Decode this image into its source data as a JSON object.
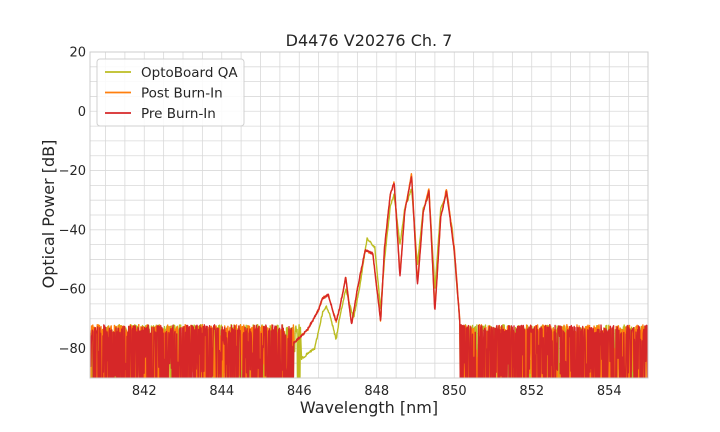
{
  "chart_data": {
    "type": "line",
    "title": "D4476 V20276 Ch. 7",
    "xlabel": "Wavelength [nm]",
    "ylabel": "Optical Power [dB]",
    "xlim": [
      840.6,
      855.0
    ],
    "ylim": [
      -90,
      20
    ],
    "xticks": [
      842,
      844,
      846,
      848,
      850,
      852,
      854
    ],
    "xtick_labels": [
      "842",
      "844",
      "846",
      "848",
      "850",
      "852",
      "854"
    ],
    "yticks": [
      20,
      0,
      -20,
      -40,
      -60,
      -80
    ],
    "ytick_labels": [
      "20",
      "0",
      "−20",
      "−40",
      "−60",
      "−80"
    ],
    "grid": true,
    "legend_position": "upper-left",
    "noise_floor": {
      "min": -90,
      "max": -72,
      "from_x": 840.6,
      "to_x": 855.0
    },
    "series": [
      {
        "name": "OptoBoard QA",
        "color": "#bcbd22",
        "envelope": [
          [
            845.9,
            -85
          ],
          [
            846.4,
            -80
          ],
          [
            846.6,
            -68
          ],
          [
            846.7,
            -66
          ],
          [
            846.8,
            -69
          ],
          [
            846.95,
            -77
          ],
          [
            847.05,
            -69
          ],
          [
            847.2,
            -60
          ],
          [
            847.4,
            -70
          ],
          [
            847.55,
            -60
          ],
          [
            847.75,
            -43
          ],
          [
            847.95,
            -46
          ],
          [
            848.1,
            -67
          ],
          [
            848.2,
            -50
          ],
          [
            848.35,
            -32
          ],
          [
            848.45,
            -28
          ],
          [
            848.6,
            -45
          ],
          [
            848.72,
            -33
          ],
          [
            848.9,
            -26
          ],
          [
            849.05,
            -52
          ],
          [
            849.2,
            -33
          ],
          [
            849.35,
            -28
          ],
          [
            849.5,
            -60
          ],
          [
            849.65,
            -33
          ],
          [
            849.8,
            -28
          ],
          [
            849.95,
            -40
          ],
          [
            850.2,
            -80
          ]
        ]
      },
      {
        "name": "Post Burn-In",
        "color": "#ff7f0e",
        "envelope": [
          [
            845.7,
            -80
          ],
          [
            846.2,
            -74
          ],
          [
            846.5,
            -67
          ],
          [
            846.6,
            -63
          ],
          [
            846.75,
            -62
          ],
          [
            846.95,
            -71
          ],
          [
            847.05,
            -66
          ],
          [
            847.2,
            -56
          ],
          [
            847.35,
            -72
          ],
          [
            847.5,
            -60
          ],
          [
            847.7,
            -47
          ],
          [
            847.9,
            -48
          ],
          [
            848.1,
            -71
          ],
          [
            848.2,
            -46
          ],
          [
            848.35,
            -28
          ],
          [
            848.45,
            -24
          ],
          [
            848.6,
            -55
          ],
          [
            848.72,
            -34
          ],
          [
            848.9,
            -21
          ],
          [
            849.05,
            -58
          ],
          [
            849.2,
            -34
          ],
          [
            849.35,
            -26
          ],
          [
            849.5,
            -67
          ],
          [
            849.65,
            -36
          ],
          [
            849.8,
            -26
          ],
          [
            850.0,
            -46
          ],
          [
            850.2,
            -80
          ]
        ]
      },
      {
        "name": "Pre Burn-In",
        "color": "#d62728",
        "envelope": [
          [
            845.7,
            -80
          ],
          [
            846.2,
            -74
          ],
          [
            846.5,
            -67
          ],
          [
            846.6,
            -63
          ],
          [
            846.75,
            -62
          ],
          [
            846.95,
            -71
          ],
          [
            847.05,
            -66
          ],
          [
            847.2,
            -56
          ],
          [
            847.35,
            -72
          ],
          [
            847.5,
            -60
          ],
          [
            847.7,
            -47
          ],
          [
            847.9,
            -48
          ],
          [
            848.1,
            -71
          ],
          [
            848.2,
            -46
          ],
          [
            848.35,
            -28
          ],
          [
            848.45,
            -24
          ],
          [
            848.6,
            -56
          ],
          [
            848.72,
            -34
          ],
          [
            848.9,
            -22
          ],
          [
            849.05,
            -59
          ],
          [
            849.2,
            -34
          ],
          [
            849.35,
            -27
          ],
          [
            849.5,
            -68
          ],
          [
            849.65,
            -36
          ],
          [
            849.8,
            -27
          ],
          [
            850.0,
            -47
          ],
          [
            850.2,
            -80
          ]
        ]
      }
    ]
  }
}
